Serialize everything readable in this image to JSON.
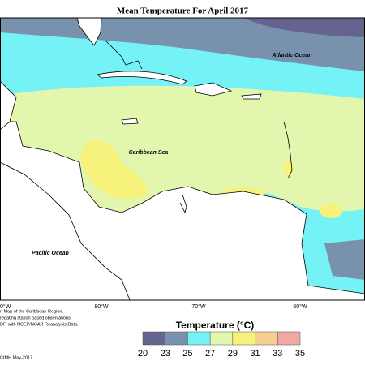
{
  "title": "Mean Temperature For April 2017",
  "map_labels": [
    "Atlantic Ocean",
    "Caribbean Sea",
    "Pacific Ocean"
  ],
  "longitude_labels": [
    "0°W",
    "80°W",
    "70°W",
    "60°W"
  ],
  "caption": [
    "n Map of the Caribbean Region.",
    "regating station based observations,",
    "DF, with NCEP/NCAR Reanalysis Data.",
    "CIMH May-2017"
  ],
  "legend": {
    "title": "Temperature (°C)",
    "ticks": [
      20,
      23,
      25,
      27,
      29,
      31,
      33,
      35
    ],
    "colors": [
      "#65638f",
      "#7891ad",
      "#74f2f6",
      "#e2f7ad",
      "#f6f27c",
      "#f5cf91",
      "#f0a9a2"
    ]
  }
}
